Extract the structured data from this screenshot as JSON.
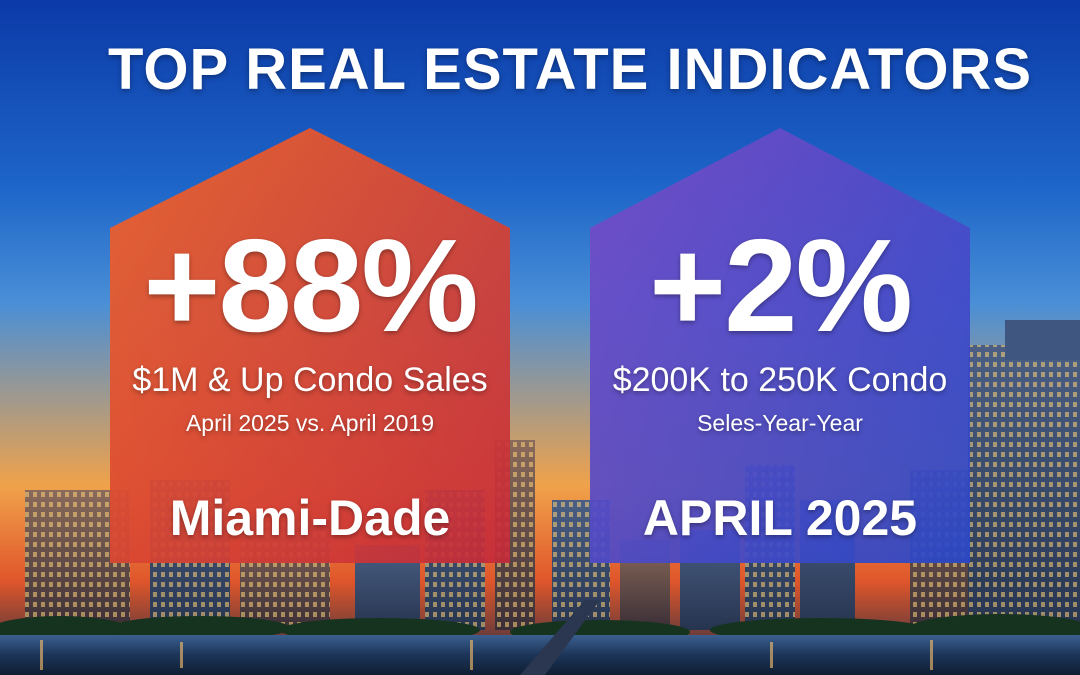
{
  "headline": "TOP REAL ESTATE INDICATORS",
  "colors": {
    "sky_top": "#0c3aa8",
    "sunset": "#f0a24a",
    "card_left_top": "#f0642a",
    "card_left_bottom": "#c42a3a",
    "card_right_top": "#7a4cc6",
    "card_right_bottom": "#2848c8"
  },
  "cards": [
    {
      "big_value": "+88%",
      "line1": "$1M & Up Condo Sales",
      "line2": "April 2025 vs. April 2019",
      "footer": "Miami-Dade"
    },
    {
      "big_value": "+2%",
      "line1": "$200K to 250K Condo",
      "line2": "Seles-Year-Year",
      "footer": "APRIL 2025"
    }
  ]
}
